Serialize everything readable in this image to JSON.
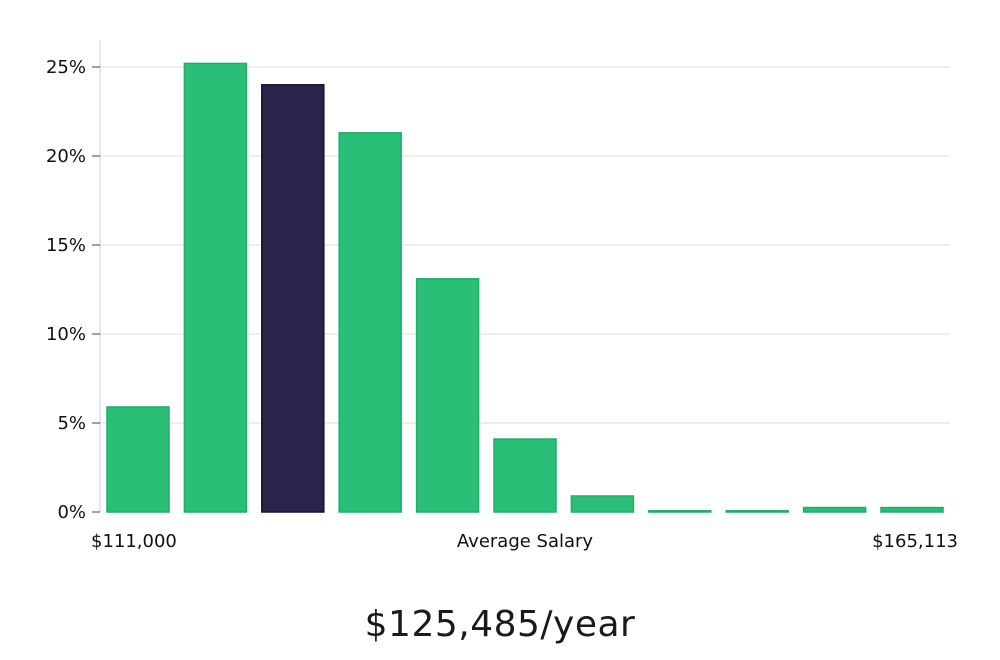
{
  "chart_data": {
    "type": "bar",
    "xlabel": "Average Salary",
    "x_min_label": "$111,000",
    "x_max_label": "$165,113",
    "ylabel": "",
    "ylim": [
      0,
      26.5
    ],
    "y_ticks": [
      0,
      5,
      10,
      15,
      20,
      25
    ],
    "y_tick_labels": [
      "0%",
      "5%",
      "10%",
      "15%",
      "20%",
      "25%"
    ],
    "grid": true,
    "values": [
      5.9,
      25.2,
      24.0,
      21.3,
      13.1,
      4.1,
      0.9,
      0.05,
      0.05,
      0.25,
      0.25
    ],
    "highlight_index": 2,
    "colors": {
      "bar": "#29bf77",
      "bar_stroke": "#1fae68",
      "highlight": "#29244a",
      "highlight_stroke": "#151233",
      "grid": "#dddddd",
      "axis": "#cccccc"
    }
  },
  "summary": {
    "salary_text": "$125,485/year"
  }
}
